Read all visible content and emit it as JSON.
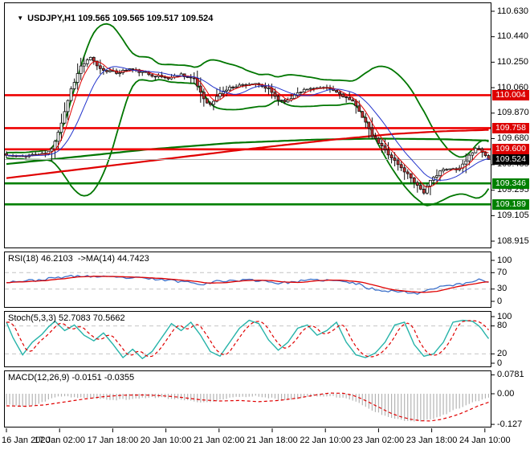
{
  "header": {
    "symbol": "USDJPY,H1",
    "ohlc": "109.565 109.565 109.517 109.524"
  },
  "colors": {
    "candle_up": "#ffffff",
    "candle_down": "#bf3232",
    "wick": "#111111",
    "bollinger": "#007600",
    "ma_fast_red": "#e00000",
    "ma_fast_blue": "#2233cc",
    "ma_slow_green": "#007600",
    "ma_slow_red": "#e00000",
    "level_red": "#ee0000",
    "level_green": "#008000",
    "current_line": "#b0b0b0",
    "badge_red": "#dd0000",
    "badge_green": "#008000",
    "badge_black": "#000000",
    "rsi_line": "#3b6fc9",
    "rsi_ma": "#e00000",
    "stoch_k": "#26b3a9",
    "stoch_d": "#e00000",
    "macd_hist": "#b4b4b4",
    "macd_signal": "#e00000",
    "grid_dash": "#c4c4c4"
  },
  "price_scale": {
    "ticks": [
      "110.630",
      "110.440",
      "110.250",
      "110.060",
      "109.870",
      "109.680",
      "109.485",
      "109.295",
      "109.105",
      "108.915"
    ],
    "badges": [
      {
        "text": "110.004",
        "type": "red"
      },
      {
        "text": "109.758",
        "type": "red"
      },
      {
        "text": "109.600",
        "type": "red"
      },
      {
        "text": "109.524",
        "type": "black"
      },
      {
        "text": "109.346",
        "type": "green"
      },
      {
        "text": "109.189",
        "type": "green"
      }
    ]
  },
  "time_axis": {
    "labels": [
      "16 Jan 2020",
      "17 Jan 02:00",
      "17 Jan 18:00",
      "20 Jan 10:00",
      "21 Jan 02:00",
      "21 Jan 18:00",
      "22 Jan 10:00",
      "23 Jan 02:00",
      "23 Jan 18:00",
      "24 Jan 10:00"
    ]
  },
  "chart_data": [
    {
      "type": "candlestick",
      "title": "USDJPY H1",
      "bars": 150,
      "ohlc_display": [
        109.565,
        109.565,
        109.517,
        109.524
      ],
      "y_ticks": [
        110.63,
        110.44,
        110.25,
        110.06,
        109.87,
        109.68,
        109.485,
        109.295,
        109.105,
        108.915
      ],
      "x_labels": [
        "16 Jan 2020",
        "17 Jan 02:00",
        "17 Jan 18:00",
        "20 Jan 10:00",
        "21 Jan 02:00",
        "21 Jan 18:00",
        "22 Jan 10:00",
        "23 Jan 02:00",
        "23 Jan 18:00",
        "24 Jan 10:00"
      ],
      "levels": {
        "red": [
          110.004,
          109.758,
          109.6
        ],
        "green": [
          109.346,
          109.189
        ],
        "current": 109.524
      },
      "close_waypoints": [
        [
          0,
          109.555
        ],
        [
          4,
          109.545
        ],
        [
          8,
          109.56
        ],
        [
          12,
          109.565
        ],
        [
          14,
          109.6
        ],
        [
          17,
          109.8
        ],
        [
          20,
          110.05
        ],
        [
          23,
          110.22
        ],
        [
          26,
          110.28
        ],
        [
          29,
          110.2
        ],
        [
          34,
          110.17
        ],
        [
          38,
          110.2
        ],
        [
          44,
          110.16
        ],
        [
          50,
          110.13
        ],
        [
          54,
          110.16
        ],
        [
          58,
          110.12
        ],
        [
          61,
          109.98
        ],
        [
          63,
          109.93
        ],
        [
          66,
          110.02
        ],
        [
          70,
          110.07
        ],
        [
          76,
          110.09
        ],
        [
          81,
          110.05
        ],
        [
          84,
          109.97
        ],
        [
          87,
          109.96
        ],
        [
          90,
          110.03
        ],
        [
          95,
          110.06
        ],
        [
          100,
          110.05
        ],
        [
          104,
          110.0
        ],
        [
          107,
          109.95
        ],
        [
          109,
          109.89
        ],
        [
          111,
          109.8
        ],
        [
          113,
          109.7
        ],
        [
          116,
          109.62
        ],
        [
          119,
          109.54
        ],
        [
          122,
          109.46
        ],
        [
          125,
          109.39
        ],
        [
          127,
          109.33
        ],
        [
          129,
          109.28
        ],
        [
          131,
          109.36
        ],
        [
          134,
          109.44
        ],
        [
          137,
          109.45
        ],
        [
          140,
          109.46
        ],
        [
          143,
          109.55
        ],
        [
          145,
          109.615
        ],
        [
          147,
          109.575
        ],
        [
          149,
          109.524
        ]
      ],
      "ma_green_waypoints": [
        [
          0,
          109.49
        ],
        [
          44,
          109.6
        ],
        [
          70,
          109.648
        ],
        [
          95,
          109.672
        ],
        [
          115,
          109.68
        ],
        [
          135,
          109.675
        ],
        [
          149,
          109.665
        ]
      ],
      "ma_red_waypoints": [
        [
          0,
          109.385
        ],
        [
          74,
          109.6
        ],
        [
          100,
          109.67
        ],
        [
          120,
          109.715
        ],
        [
          135,
          109.735
        ],
        [
          149,
          109.745
        ]
      ]
    },
    {
      "type": "line",
      "name": "RSI",
      "label": "RSI(18) 46.2103  ->MA(14) 44.7423",
      "value": 46.2103,
      "ma_value": 44.7423,
      "range": [
        0,
        100
      ],
      "grid": [
        70,
        30
      ],
      "ticks": [
        "100",
        "70",
        "30",
        "0"
      ],
      "waypoints": [
        [
          0,
          48
        ],
        [
          6,
          50
        ],
        [
          10,
          52
        ],
        [
          14,
          56
        ],
        [
          18,
          60
        ],
        [
          24,
          62
        ],
        [
          28,
          60
        ],
        [
          34,
          58
        ],
        [
          40,
          57
        ],
        [
          46,
          54
        ],
        [
          52,
          50
        ],
        [
          58,
          46
        ],
        [
          61,
          42
        ],
        [
          64,
          48
        ],
        [
          70,
          51
        ],
        [
          76,
          52
        ],
        [
          81,
          49
        ],
        [
          84,
          44
        ],
        [
          88,
          47
        ],
        [
          93,
          51
        ],
        [
          98,
          52
        ],
        [
          103,
          49
        ],
        [
          107,
          45
        ],
        [
          109,
          41
        ],
        [
          112,
          32
        ],
        [
          115,
          28
        ],
        [
          118,
          26
        ],
        [
          121,
          24
        ],
        [
          124,
          22
        ],
        [
          127,
          20
        ],
        [
          129,
          24
        ],
        [
          132,
          33
        ],
        [
          135,
          38
        ],
        [
          138,
          40
        ],
        [
          141,
          42
        ],
        [
          144,
          48
        ],
        [
          146,
          55
        ],
        [
          147,
          52
        ],
        [
          148,
          48
        ],
        [
          149,
          46.2
        ]
      ]
    },
    {
      "type": "line",
      "name": "Stochastic",
      "label": "Stoch(5,3,3) 52.7083 70.5662",
      "k_value": 52.7083,
      "d_value": 70.5662,
      "range": [
        0,
        100
      ],
      "grid": [
        80,
        20
      ],
      "ticks": [
        "100",
        "80",
        "20",
        "0"
      ],
      "k_waypoints": [
        [
          0,
          88
        ],
        [
          2,
          55
        ],
        [
          5,
          18
        ],
        [
          8,
          45
        ],
        [
          11,
          62
        ],
        [
          13,
          78
        ],
        [
          15,
          90
        ],
        [
          18,
          70
        ],
        [
          21,
          82
        ],
        [
          24,
          60
        ],
        [
          27,
          48
        ],
        [
          30,
          65
        ],
        [
          33,
          40
        ],
        [
          36,
          12
        ],
        [
          39,
          30
        ],
        [
          42,
          10
        ],
        [
          45,
          25
        ],
        [
          48,
          55
        ],
        [
          51,
          85
        ],
        [
          54,
          70
        ],
        [
          57,
          88
        ],
        [
          60,
          60
        ],
        [
          63,
          25
        ],
        [
          66,
          15
        ],
        [
          69,
          45
        ],
        [
          72,
          75
        ],
        [
          75,
          92
        ],
        [
          78,
          85
        ],
        [
          81,
          50
        ],
        [
          84,
          28
        ],
        [
          87,
          45
        ],
        [
          90,
          75
        ],
        [
          93,
          82
        ],
        [
          96,
          60
        ],
        [
          99,
          70
        ],
        [
          102,
          88
        ],
        [
          105,
          45
        ],
        [
          108,
          18
        ],
        [
          111,
          12
        ],
        [
          114,
          22
        ],
        [
          117,
          45
        ],
        [
          120,
          82
        ],
        [
          123,
          88
        ],
        [
          126,
          40
        ],
        [
          129,
          15
        ],
        [
          132,
          20
        ],
        [
          135,
          45
        ],
        [
          138,
          88
        ],
        [
          141,
          92
        ],
        [
          144,
          90
        ],
        [
          146,
          80
        ],
        [
          147,
          72
        ],
        [
          148,
          62
        ],
        [
          149,
          52.7
        ]
      ]
    },
    {
      "type": "histogram",
      "name": "MACD",
      "label": "MACD(12,26,9) -0.0151 -0.0355",
      "macd_value": -0.0151,
      "signal_value": -0.0355,
      "ticks": [
        "0.0781",
        "0.00",
        "-0.127"
      ],
      "main_waypoints": [
        [
          0,
          -0.046
        ],
        [
          5,
          -0.054
        ],
        [
          9,
          -0.048
        ],
        [
          13,
          -0.025
        ],
        [
          17,
          -0.01
        ],
        [
          21,
          -0.014
        ],
        [
          27,
          -0.02
        ],
        [
          33,
          -0.026
        ],
        [
          39,
          -0.022
        ],
        [
          45,
          -0.014
        ],
        [
          51,
          -0.02
        ],
        [
          57,
          -0.03
        ],
        [
          61,
          -0.038
        ],
        [
          65,
          -0.028
        ],
        [
          69,
          -0.018
        ],
        [
          73,
          -0.012
        ],
        [
          77,
          -0.01
        ],
        [
          81,
          -0.016
        ],
        [
          85,
          -0.026
        ],
        [
          89,
          -0.022
        ],
        [
          93,
          -0.014
        ],
        [
          97,
          -0.009
        ],
        [
          101,
          -0.011
        ],
        [
          105,
          -0.02
        ],
        [
          108,
          -0.032
        ],
        [
          111,
          -0.055
        ],
        [
          114,
          -0.075
        ],
        [
          117,
          -0.09
        ],
        [
          120,
          -0.102
        ],
        [
          123,
          -0.11
        ],
        [
          126,
          -0.114
        ],
        [
          129,
          -0.112
        ],
        [
          132,
          -0.102
        ],
        [
          135,
          -0.088
        ],
        [
          138,
          -0.07
        ],
        [
          141,
          -0.055
        ],
        [
          144,
          -0.038
        ],
        [
          147,
          -0.024
        ],
        [
          149,
          -0.0151
        ]
      ],
      "signal_waypoints": [
        [
          0,
          -0.05
        ],
        [
          6,
          -0.052
        ],
        [
          12,
          -0.046
        ],
        [
          18,
          -0.034
        ],
        [
          24,
          -0.022
        ],
        [
          30,
          -0.012
        ],
        [
          36,
          -0.006
        ],
        [
          42,
          -0.005
        ],
        [
          48,
          -0.008
        ],
        [
          54,
          -0.015
        ],
        [
          60,
          -0.025
        ],
        [
          66,
          -0.03
        ],
        [
          72,
          -0.028
        ],
        [
          78,
          -0.033
        ],
        [
          84,
          -0.028
        ],
        [
          90,
          -0.018
        ],
        [
          96,
          -0.004
        ],
        [
          100,
          0.003
        ],
        [
          104,
          0.002
        ],
        [
          107,
          -0.006
        ],
        [
          110,
          -0.022
        ],
        [
          113,
          -0.042
        ],
        [
          116,
          -0.062
        ],
        [
          119,
          -0.082
        ],
        [
          122,
          -0.096
        ],
        [
          125,
          -0.106
        ],
        [
          128,
          -0.112
        ],
        [
          131,
          -0.113
        ],
        [
          134,
          -0.107
        ],
        [
          137,
          -0.097
        ],
        [
          140,
          -0.084
        ],
        [
          143,
          -0.067
        ],
        [
          146,
          -0.049
        ],
        [
          149,
          -0.0355
        ]
      ]
    }
  ]
}
